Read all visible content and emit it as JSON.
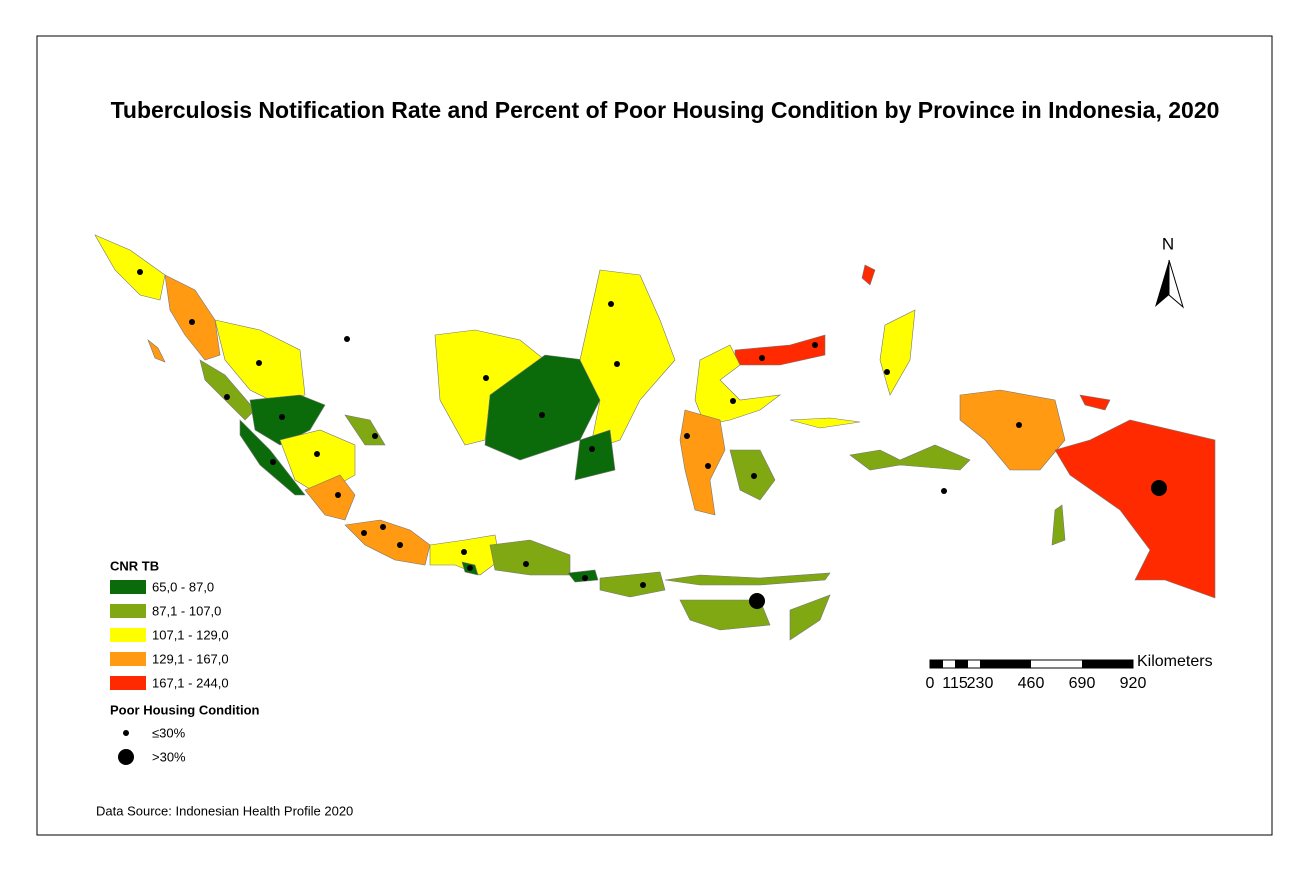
{
  "title": "Tuberculosis Notification Rate and Percent of Poor Housing Condition by Province in Indonesia, 2020",
  "legend": {
    "cnr_title": "CNR TB",
    "classes": [
      {
        "label": "65,0 - 87,0",
        "color": "#0b6b0b"
      },
      {
        "label": "87,1 - 107,0",
        "color": "#7fa812"
      },
      {
        "label": "107,1 - 129,0",
        "color": "#ffff00"
      },
      {
        "label": "129,1 - 167,0",
        "color": "#ff9a12"
      },
      {
        "label": "167,1 - 244,0",
        "color": "#ff2a00"
      }
    ],
    "housing_title": "Poor Housing Condition",
    "housing": [
      {
        "label": "≤30%"
      },
      {
        "label": ">30%"
      }
    ]
  },
  "scale_bar": {
    "unit": "Kilometers",
    "ticks": [
      "0",
      "115",
      "230",
      "460",
      "690",
      "920"
    ]
  },
  "north": "N",
  "source": "Data Source: Indonesian Health Profile 2020"
}
